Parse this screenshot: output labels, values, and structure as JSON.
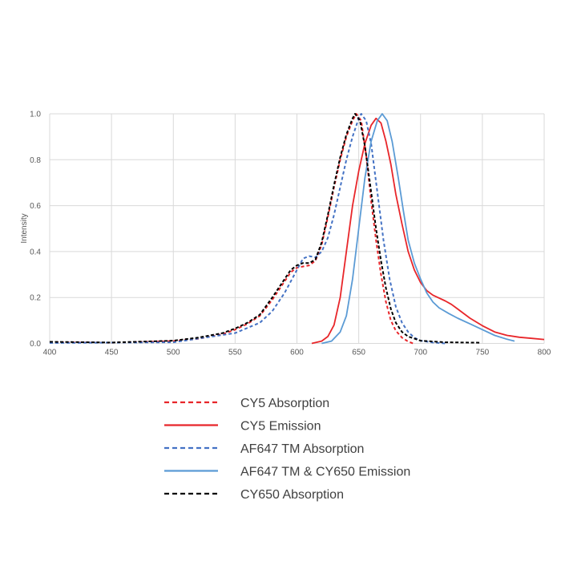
{
  "chart_data": {
    "type": "line",
    "title": "",
    "xlabel": "",
    "ylabel": "Intensity",
    "xlim": [
      400,
      800
    ],
    "ylim": [
      0,
      1.0
    ],
    "xticks": [
      "400",
      "450",
      "500",
      "550",
      "600",
      "650",
      "700",
      "750",
      "800"
    ],
    "yticks": [
      "0.0",
      "0.2",
      "0.4",
      "0.6",
      "0.8",
      "1.0"
    ],
    "grid": true,
    "legend_position": "bottom",
    "series": [
      {
        "name": "CY5 Absorption",
        "color": "#e8262a",
        "style": "dashed",
        "x": [
          400,
          450,
          500,
          520,
          540,
          550,
          560,
          570,
          580,
          590,
          595,
          600,
          605,
          610,
          615,
          620,
          625,
          630,
          635,
          640,
          645,
          648,
          652,
          656,
          660,
          664,
          668,
          672,
          676,
          680,
          685,
          690,
          694
        ],
        "y": [
          0.005,
          0.003,
          0.01,
          0.02,
          0.04,
          0.06,
          0.085,
          0.12,
          0.19,
          0.27,
          0.31,
          0.33,
          0.335,
          0.34,
          0.36,
          0.43,
          0.55,
          0.68,
          0.8,
          0.9,
          0.97,
          1.0,
          0.97,
          0.82,
          0.62,
          0.45,
          0.3,
          0.18,
          0.1,
          0.055,
          0.025,
          0.008,
          0
        ]
      },
      {
        "name": "CY5 Emission",
        "color": "#e8262a",
        "style": "solid",
        "x": [
          612,
          620,
          625,
          630,
          635,
          640,
          645,
          650,
          655,
          660,
          664,
          668,
          672,
          676,
          680,
          685,
          690,
          695,
          700,
          705,
          710,
          720,
          725,
          730,
          740,
          750,
          760,
          770,
          780,
          790,
          800
        ],
        "y": [
          0,
          0.01,
          0.03,
          0.08,
          0.2,
          0.4,
          0.6,
          0.75,
          0.87,
          0.95,
          0.98,
          0.96,
          0.88,
          0.78,
          0.65,
          0.52,
          0.4,
          0.32,
          0.265,
          0.23,
          0.21,
          0.185,
          0.17,
          0.15,
          0.11,
          0.077,
          0.05,
          0.035,
          0.027,
          0.022,
          0.017
        ]
      },
      {
        "name": "AF647 TM Absorption",
        "color": "#4472c4",
        "style": "dashed",
        "x": [
          400,
          500,
          550,
          570,
          580,
          590,
          600,
          605,
          610,
          615,
          620,
          625,
          630,
          635,
          640,
          645,
          650,
          652,
          656,
          660,
          665,
          670,
          675,
          680,
          685,
          690,
          695,
          700,
          710,
          720
        ],
        "y": [
          0.002,
          0.005,
          0.045,
          0.09,
          0.14,
          0.22,
          0.32,
          0.37,
          0.38,
          0.375,
          0.4,
          0.46,
          0.56,
          0.68,
          0.8,
          0.9,
          0.98,
          1.0,
          0.97,
          0.87,
          0.66,
          0.45,
          0.28,
          0.16,
          0.09,
          0.05,
          0.025,
          0.012,
          0.004,
          0
        ]
      },
      {
        "name": "AF647 TM & CY650 Emission",
        "color": "#5b9bd5",
        "style": "solid",
        "x": [
          620,
          628,
          635,
          640,
          645,
          650,
          655,
          660,
          665,
          669,
          673,
          677,
          682,
          686,
          690,
          695,
          700,
          705,
          710,
          715,
          723,
          730,
          740,
          750,
          760,
          770,
          776
        ],
        "y": [
          0,
          0.01,
          0.05,
          0.12,
          0.28,
          0.5,
          0.72,
          0.88,
          0.97,
          1.0,
          0.97,
          0.88,
          0.72,
          0.58,
          0.45,
          0.35,
          0.28,
          0.22,
          0.18,
          0.155,
          0.13,
          0.11,
          0.085,
          0.06,
          0.035,
          0.018,
          0.01
        ]
      },
      {
        "name": "CY650 Absorption",
        "color": "#000000",
        "style": "dashed",
        "x": [
          400,
          450,
          500,
          520,
          540,
          550,
          560,
          570,
          580,
          590,
          595,
          600,
          605,
          610,
          615,
          620,
          625,
          630,
          635,
          640,
          645,
          647,
          651,
          655,
          660,
          664,
          668,
          672,
          676,
          680,
          685,
          690,
          700,
          720,
          748
        ],
        "y": [
          0.007,
          0.004,
          0.012,
          0.025,
          0.045,
          0.065,
          0.09,
          0.125,
          0.2,
          0.28,
          0.32,
          0.34,
          0.35,
          0.35,
          0.365,
          0.44,
          0.56,
          0.69,
          0.81,
          0.91,
          0.98,
          1.0,
          0.97,
          0.86,
          0.66,
          0.5,
          0.36,
          0.24,
          0.15,
          0.09,
          0.05,
          0.03,
          0.012,
          0.005,
          0.003
        ]
      }
    ]
  }
}
